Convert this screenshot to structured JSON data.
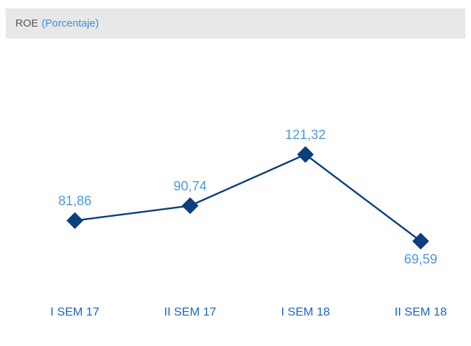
{
  "chart_data": {
    "type": "line",
    "title": "ROE",
    "subtitle": "(Porcentaje)",
    "categories": [
      "I SEM 17",
      "II SEM 17",
      "I SEM 18",
      "II SEM 18"
    ],
    "series": [
      {
        "name": "ROE",
        "color": "#0d3f80",
        "values": [
          81.86,
          90.74,
          121.32,
          69.59
        ],
        "value_labels": [
          "81,86",
          "90,74",
          "121,32",
          "69,59"
        ]
      }
    ]
  }
}
